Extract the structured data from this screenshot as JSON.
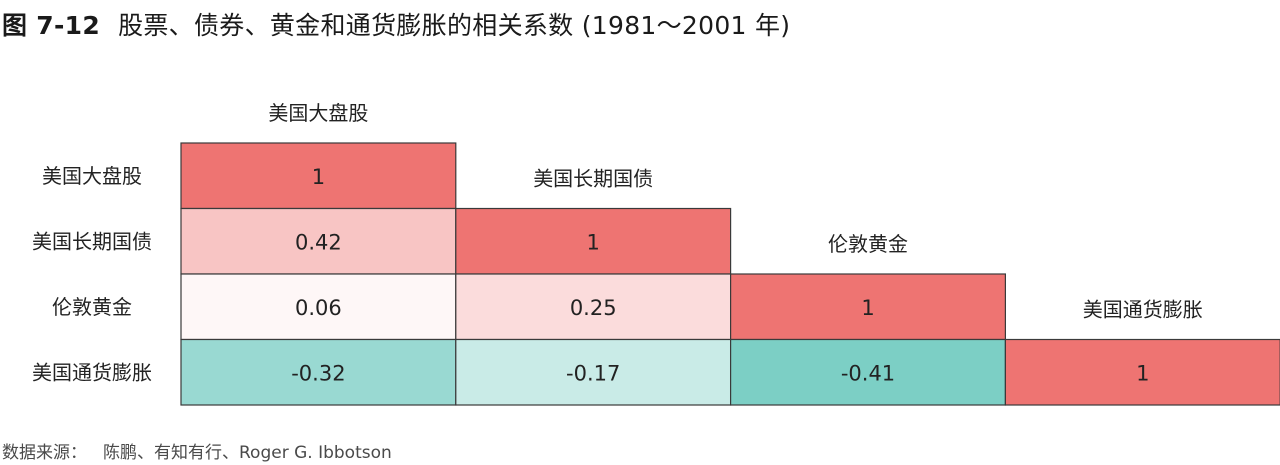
{
  "figure": {
    "number": "图 7-12",
    "title": "股票、债券、黄金和通货膨胀的相关系数 (1981～2001 年)"
  },
  "source": {
    "label": "数据来源：",
    "text": "陈鹏、有知有行、Roger G. Ibbotson"
  },
  "chart_data": {
    "type": "heatmap",
    "title": "股票、债券、黄金和通货膨胀的相关系数 (1981～2001 年)",
    "assets": [
      "美国大盘股",
      "美国长期国债",
      "伦敦黄金",
      "美国通货膨胀"
    ],
    "matrix": [
      [
        1,
        null,
        null,
        null
      ],
      [
        0.42,
        1,
        null,
        null
      ],
      [
        0.06,
        0.25,
        1,
        null
      ],
      [
        -0.32,
        -0.17,
        -0.41,
        1
      ]
    ],
    "display_labels": [
      [
        "1",
        "",
        "",
        ""
      ],
      [
        "0.42",
        "1",
        "",
        ""
      ],
      [
        "0.06",
        "0.25",
        "1",
        ""
      ],
      [
        "-0.32",
        "-0.17",
        "-0.41",
        "1"
      ]
    ],
    "triangle": "lower",
    "colors": {
      "positive": "#ee7472",
      "negative": "#5fc4b8",
      "neutral": "#ffffff",
      "border": "#3a3a3a"
    }
  }
}
